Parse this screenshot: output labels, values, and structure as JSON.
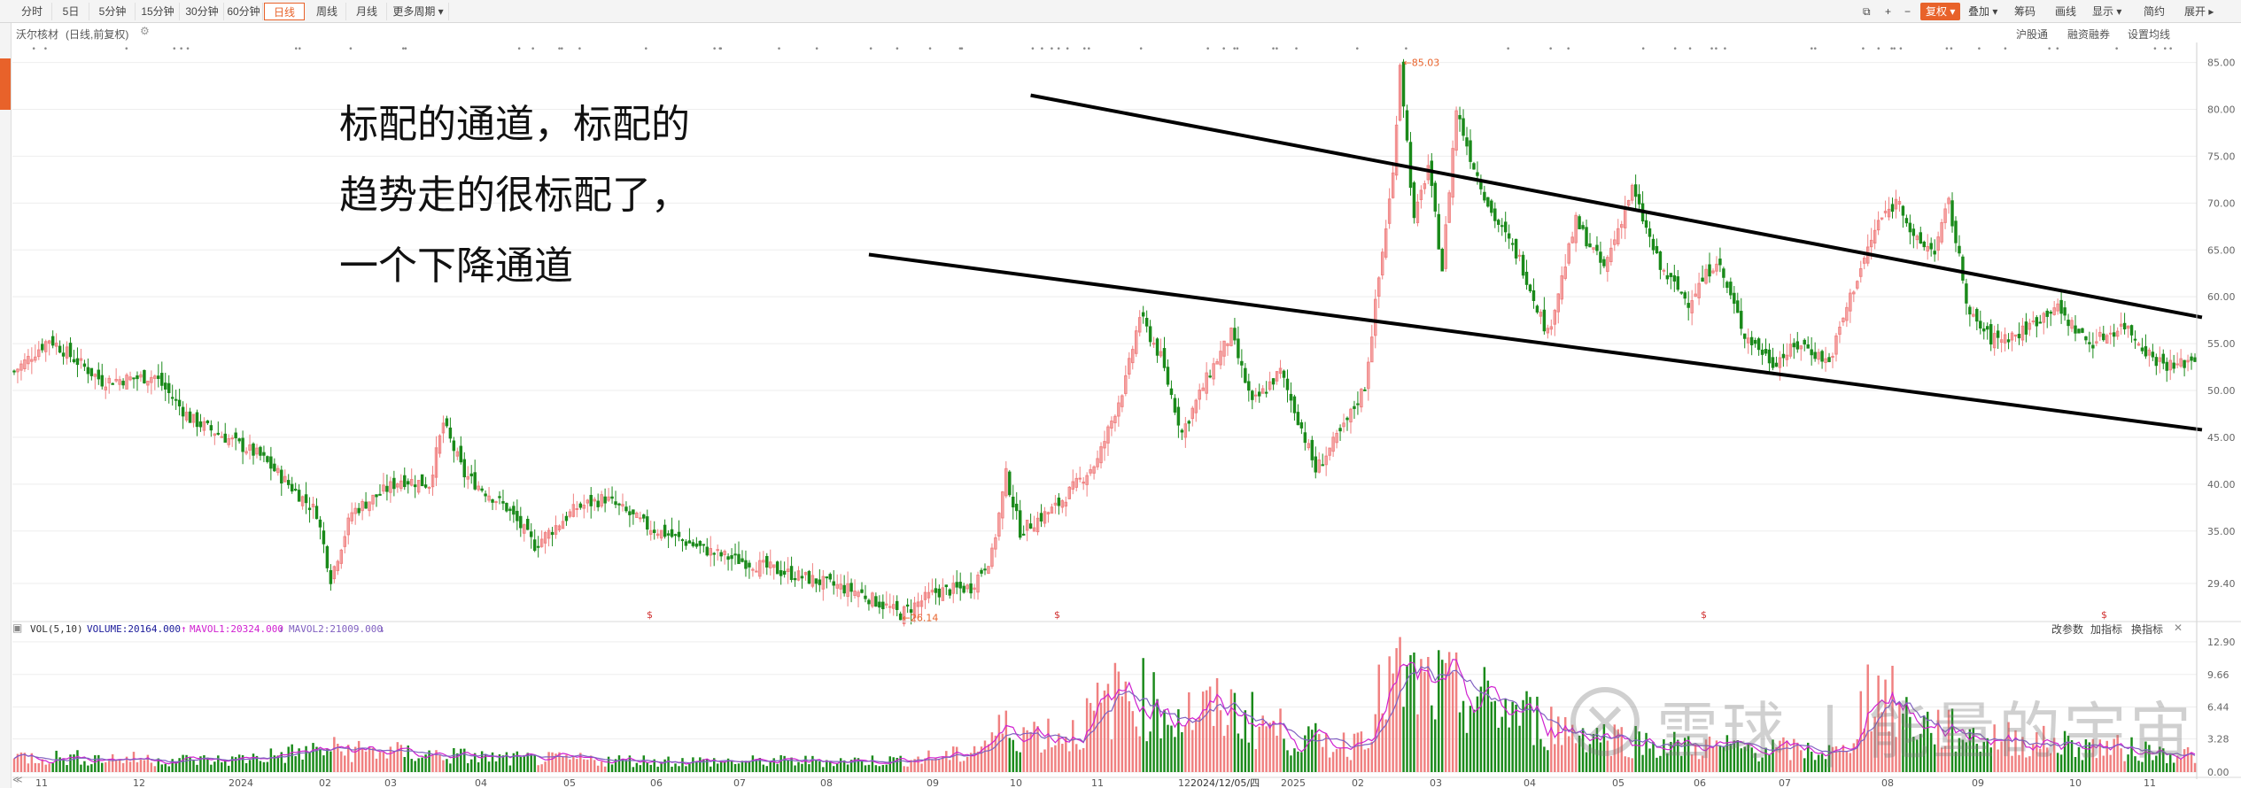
{
  "toolbar": {
    "periods": [
      "分时",
      "5日",
      "5分钟",
      "15分钟",
      "30分钟",
      "60分钟",
      "日线",
      "周线",
      "月线",
      "更多周期"
    ],
    "active_period": "日线",
    "right_tools": [
      "复权",
      "叠加",
      "筹码",
      "画线",
      "显示",
      "简约",
      "展开"
    ]
  },
  "subbar": {
    "stock_title": "沃尔核材",
    "mode_label": "(日线,前复权)",
    "right_links": [
      "沪股通",
      "融资融券",
      "设置均线"
    ]
  },
  "annotation": {
    "line1": "标配的通道，标配的",
    "line2": "趋势走的很标配了，",
    "line3": "一个下降通道"
  },
  "watermark": {
    "brand": "雪球",
    "author": "能量的宇宙"
  },
  "volume_panel": {
    "label": "VOL(5,10)",
    "volume": "VOLUME:20164.000",
    "mavol1": "MAVOL1:20324.000",
    "mavol2": "MAVOL2:21009.000",
    "buttons": [
      "改参数",
      "加指标",
      "换指标"
    ]
  },
  "colors": {
    "up": "#f08080",
    "down": "#1a8a1a",
    "accent": "#e8622a",
    "mavol1": "#d020d0",
    "mavol2": "#8060c0",
    "channel": "#000000"
  },
  "chart_data": [
    {
      "type": "candlestick",
      "y_ticks": [
        "85.00",
        "80.00",
        "75.00",
        "70.00",
        "65.00",
        "60.00",
        "55.00",
        "50.00",
        "45.00",
        "40.00",
        "35.00",
        "29.40"
      ],
      "x_ticks": [
        "11",
        "12",
        "2024",
        "02",
        "03",
        "04",
        "05",
        "06",
        "07",
        "08",
        "09",
        "10",
        "11",
        "12",
        "2024/12/05/四",
        "2025",
        "02",
        "03",
        "04",
        "05",
        "06",
        "07",
        "08",
        "09",
        "10",
        "11"
      ],
      "ylim": [
        26,
        86
      ],
      "grid": true,
      "annotations": [
        {
          "label": "85.03",
          "value": 85.03
        },
        {
          "label": "26.14",
          "value": 26.14
        }
      ],
      "trend_lines": [
        {
          "name": "upper-channel",
          "points": [
            [
              "2024-10-15",
              81.5
            ],
            [
              "2025-11-30",
              57.8
            ]
          ]
        },
        {
          "name": "lower-channel",
          "points": [
            [
              "2024-08-20",
              64.5
            ],
            [
              "2025-11-30",
              45.8
            ]
          ]
        }
      ],
      "segments": [
        [
          0,
          52.0
        ],
        [
          10,
          55.5
        ],
        [
          25,
          51.0
        ],
        [
          40,
          51.5
        ],
        [
          50,
          47.0
        ],
        [
          70,
          43.0
        ],
        [
          86,
          37.0
        ],
        [
          90,
          30.0
        ],
        [
          96,
          37.0
        ],
        [
          110,
          40.5
        ],
        [
          118,
          40.0
        ],
        [
          122,
          46.5
        ],
        [
          128,
          41.0
        ],
        [
          140,
          37.5
        ],
        [
          148,
          33.5
        ],
        [
          160,
          37.5
        ],
        [
          168,
          38.5
        ],
        [
          180,
          35.5
        ],
        [
          200,
          32.5
        ],
        [
          220,
          30.5
        ],
        [
          240,
          28.5
        ],
        [
          252,
          26.14
        ],
        [
          262,
          28.5
        ],
        [
          272,
          29.0
        ],
        [
          278,
          32.5
        ],
        [
          282,
          41.0
        ],
        [
          286,
          35.0
        ],
        [
          296,
          37.5
        ],
        [
          308,
          42.5
        ],
        [
          316,
          51.0
        ],
        [
          320,
          58.0
        ],
        [
          326,
          53.5
        ],
        [
          332,
          45.5
        ],
        [
          340,
          52.0
        ],
        [
          346,
          56.0
        ],
        [
          352,
          48.5
        ],
        [
          360,
          52.0
        ],
        [
          366,
          46.0
        ],
        [
          370,
          41.5
        ],
        [
          378,
          46.0
        ],
        [
          384,
          50.5
        ],
        [
          388,
          62.0
        ],
        [
          392,
          73.0
        ],
        [
          394,
          85.03
        ],
        [
          398,
          68.0
        ],
        [
          402,
          74.0
        ],
        [
          406,
          63.0
        ],
        [
          410,
          80.0
        ],
        [
          414,
          75.0
        ],
        [
          420,
          69.0
        ],
        [
          428,
          64.0
        ],
        [
          436,
          56.0
        ],
        [
          444,
          68.0
        ],
        [
          452,
          63.0
        ],
        [
          460,
          71.5
        ],
        [
          468,
          63.0
        ],
        [
          476,
          59.5
        ],
        [
          484,
          64.0
        ],
        [
          492,
          56.0
        ],
        [
          500,
          53.0
        ],
        [
          508,
          55.0
        ],
        [
          516,
          53.0
        ],
        [
          522,
          60.0
        ],
        [
          530,
          68.0
        ],
        [
          536,
          70.5
        ],
        [
          540,
          66.0
        ],
        [
          546,
          65.0
        ],
        [
          550,
          70.0
        ],
        [
          556,
          58.0
        ],
        [
          562,
          55.5
        ],
        [
          570,
          56.0
        ],
        [
          580,
          59.0
        ],
        [
          590,
          55.0
        ],
        [
          600,
          57.0
        ],
        [
          608,
          53.5
        ],
        [
          614,
          52.5
        ],
        [
          620,
          53.5
        ]
      ]
    },
    {
      "type": "bar",
      "y_ticks": [
        "12.90",
        "9.66",
        "6.44",
        "3.28",
        "0.00"
      ],
      "ylim": [
        0,
        13.5
      ],
      "series": [
        {
          "name": "VOLUME",
          "last_value": 20164.0
        },
        {
          "name": "MAVOL1",
          "last_value": 20324.0
        },
        {
          "name": "MAVOL2",
          "last_value": 21009.0
        }
      ],
      "profile_points": [
        [
          0,
          1.6
        ],
        [
          60,
          1.2
        ],
        [
          90,
          2.4
        ],
        [
          140,
          1.4
        ],
        [
          200,
          1.1
        ],
        [
          250,
          1.2
        ],
        [
          270,
          1.8
        ],
        [
          282,
          4.5
        ],
        [
          300,
          3.8
        ],
        [
          316,
          8.5
        ],
        [
          330,
          6.0
        ],
        [
          346,
          6.4
        ],
        [
          366,
          3.4
        ],
        [
          380,
          2.8
        ],
        [
          392,
          9.5
        ],
        [
          404,
          8.5
        ],
        [
          420,
          7.0
        ],
        [
          440,
          4.5
        ],
        [
          470,
          2.8
        ],
        [
          500,
          2.4
        ],
        [
          520,
          2.0
        ],
        [
          528,
          9.0
        ],
        [
          540,
          5.2
        ],
        [
          556,
          3.8
        ],
        [
          580,
          3.0
        ],
        [
          600,
          2.4
        ],
        [
          620,
          1.8
        ]
      ]
    }
  ]
}
